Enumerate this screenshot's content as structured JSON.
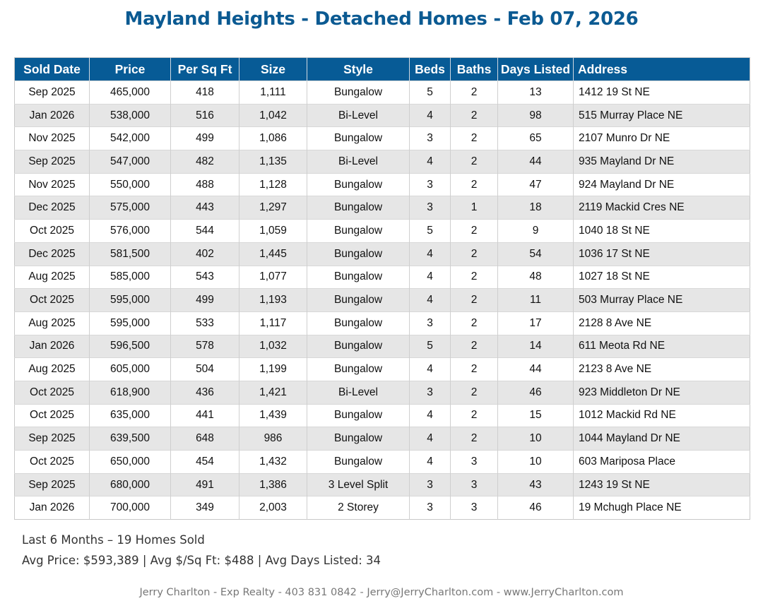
{
  "title": "Mayland Heights - Detached Homes - Feb 07, 2026",
  "table": {
    "columns": [
      "Sold Date",
      "Price",
      "Per Sq Ft",
      "Size",
      "Style",
      "Beds",
      "Baths",
      "Days Listed",
      "Address"
    ],
    "rows": [
      [
        "Sep 2025",
        "465,000",
        "418",
        "1,111",
        "Bungalow",
        "5",
        "2",
        "13",
        "1412 19 St NE"
      ],
      [
        "Jan 2026",
        "538,000",
        "516",
        "1,042",
        "Bi-Level",
        "4",
        "2",
        "98",
        "515 Murray Place NE"
      ],
      [
        "Nov 2025",
        "542,000",
        "499",
        "1,086",
        "Bungalow",
        "3",
        "2",
        "65",
        "2107 Munro Dr NE"
      ],
      [
        "Sep 2025",
        "547,000",
        "482",
        "1,135",
        "Bi-Level",
        "4",
        "2",
        "44",
        "935 Mayland Dr NE"
      ],
      [
        "Nov 2025",
        "550,000",
        "488",
        "1,128",
        "Bungalow",
        "3",
        "2",
        "47",
        "924 Mayland Dr NE"
      ],
      [
        "Dec 2025",
        "575,000",
        "443",
        "1,297",
        "Bungalow",
        "3",
        "1",
        "18",
        "2119 Mackid Cres NE"
      ],
      [
        "Oct 2025",
        "576,000",
        "544",
        "1,059",
        "Bungalow",
        "5",
        "2",
        "9",
        "1040 18 St NE"
      ],
      [
        "Dec 2025",
        "581,500",
        "402",
        "1,445",
        "Bungalow",
        "4",
        "2",
        "54",
        "1036 17 St NE"
      ],
      [
        "Aug 2025",
        "585,000",
        "543",
        "1,077",
        "Bungalow",
        "4",
        "2",
        "48",
        "1027 18 St NE"
      ],
      [
        "Oct 2025",
        "595,000",
        "499",
        "1,193",
        "Bungalow",
        "4",
        "2",
        "11",
        "503 Murray Place NE"
      ],
      [
        "Aug 2025",
        "595,000",
        "533",
        "1,117",
        "Bungalow",
        "3",
        "2",
        "17",
        "2128 8 Ave NE"
      ],
      [
        "Jan 2026",
        "596,500",
        "578",
        "1,032",
        "Bungalow",
        "5",
        "2",
        "14",
        "611 Meota Rd NE"
      ],
      [
        "Aug 2025",
        "605,000",
        "504",
        "1,199",
        "Bungalow",
        "4",
        "2",
        "44",
        "2123 8 Ave NE"
      ],
      [
        "Oct 2025",
        "618,900",
        "436",
        "1,421",
        "Bi-Level",
        "3",
        "2",
        "46",
        "923 Middleton Dr NE"
      ],
      [
        "Oct 2025",
        "635,000",
        "441",
        "1,439",
        "Bungalow",
        "4",
        "2",
        "15",
        "1012 Mackid Rd NE"
      ],
      [
        "Sep 2025",
        "639,500",
        "648",
        "986",
        "Bungalow",
        "4",
        "2",
        "10",
        "1044 Mayland Dr NE"
      ],
      [
        "Oct 2025",
        "650,000",
        "454",
        "1,432",
        "Bungalow",
        "4",
        "3",
        "10",
        "603 Mariposa Place"
      ],
      [
        "Sep 2025",
        "680,000",
        "491",
        "1,386",
        "3 Level Split",
        "3",
        "3",
        "43",
        "1243 19 St NE"
      ],
      [
        "Jan 2026",
        "700,000",
        "349",
        "2,003",
        "2 Storey",
        "3",
        "3",
        "46",
        "19 Mchugh Place NE"
      ]
    ]
  },
  "summary": {
    "line1": "Last 6 Months – 19 Homes Sold",
    "line2": "Avg Price: $593,389 | Avg $/Sq Ft: $488 | Avg Days Listed: 34"
  },
  "footer": "Jerry Charlton - Exp Realty - 403 831 0842 - Jerry@JerryCharlton.com - www.JerryCharlton.com",
  "colors": {
    "title": "#0b5a92",
    "header_bg": "#075b96",
    "alt_row": "#e6e6e6"
  }
}
